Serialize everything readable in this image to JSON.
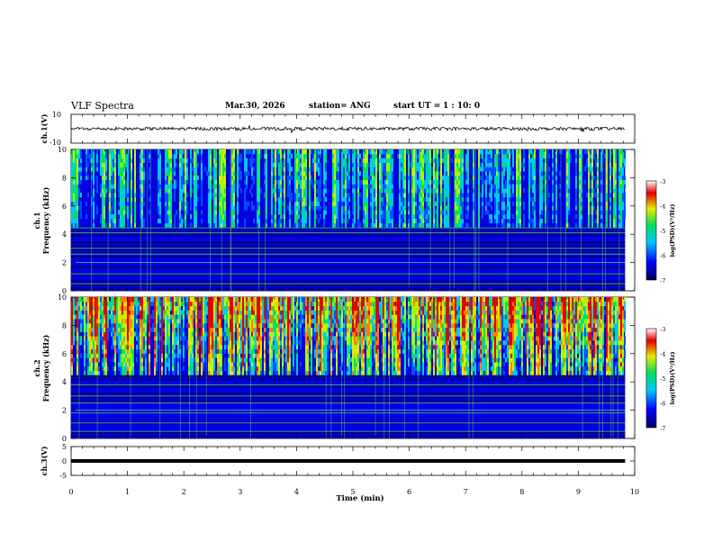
{
  "header": {
    "title": "VLF Spectra",
    "date": "Mar.30, 2026",
    "station": "station= ANG",
    "start_label": "start  UT =",
    "start_value": "1 : 10: 0"
  },
  "chart_data": [
    {
      "type": "line",
      "id": "ch1-waveform",
      "ylabel": "ch.1(V)",
      "ylim": [
        -10,
        10
      ],
      "yticklabels": [
        "10",
        "-10"
      ],
      "x_range_min": [
        0,
        9.83
      ],
      "description_of_series": "noisy waveform around 0 V, amplitude about 1 V",
      "baseline": 0.0
    },
    {
      "type": "heatmap",
      "id": "ch1-spectrogram",
      "ylabel_line1": "ch.1",
      "ylabel_line2": "Frequency  (kHz)",
      "ylim": [
        0,
        10
      ],
      "yticks": [
        0,
        2,
        4,
        6,
        8,
        10
      ],
      "x_range_min": [
        0,
        9.83
      ],
      "color_scale": {
        "label": "log(PSD)(V²/Hz)",
        "range": [
          -7,
          -3
        ],
        "ticks": [
          -3,
          -4,
          -5,
          -6,
          -7
        ]
      },
      "strong_bands_khz": [
        0.5,
        1.2,
        2.0,
        2.6,
        3.0,
        4.1,
        4.45
      ]
    },
    {
      "type": "heatmap",
      "id": "ch2-spectrogram",
      "ylabel_line1": "ch.2",
      "ylabel_line2": "Frequency  (kHz)",
      "ylim": [
        0,
        10
      ],
      "yticks": [
        0,
        2,
        4,
        6,
        8,
        10
      ],
      "x_range_min": [
        0,
        9.83
      ],
      "color_scale": {
        "label": "log(PSD)(V²/Hz)",
        "range": [
          -7,
          -3
        ],
        "ticks": [
          -3,
          -4,
          -5,
          -6,
          -7
        ]
      },
      "strong_bands_khz": [
        0.5,
        1.1,
        1.8,
        2.0,
        2.5,
        3.0,
        3.8
      ]
    },
    {
      "type": "line",
      "id": "ch3-waveform",
      "ylabel": "ch.3(V)",
      "ylim": [
        -5,
        5
      ],
      "yticks": [
        5,
        0,
        -5
      ],
      "x_range_min": [
        0,
        9.83
      ],
      "baseline": 0.0
    }
  ],
  "x_axis": {
    "label": "Time  (min)",
    "ticks": [
      "0",
      "1",
      "2",
      "3",
      "4",
      "5",
      "6",
      "7",
      "8",
      "9",
      "10"
    ],
    "xlim": [
      0,
      10
    ]
  },
  "colors": {
    "deep": "#000060",
    "blue": "#0000e0",
    "cyan": "#00c8ff",
    "green": "#00e060",
    "yellow": "#e8e800",
    "red": "#e00000",
    "axis": "#000000"
  }
}
